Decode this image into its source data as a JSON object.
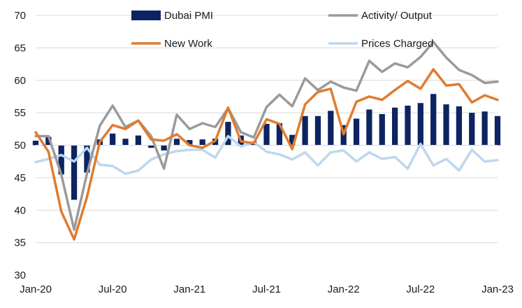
{
  "chart_data": {
    "type": "bar+line",
    "title": "",
    "xlabel": "",
    "ylabel": "",
    "ylim": [
      30,
      70
    ],
    "yticks": [
      30,
      35,
      40,
      45,
      50,
      55,
      60,
      65,
      70
    ],
    "grid": true,
    "legend_position": "top",
    "x": [
      "Jan-20",
      "Feb-20",
      "Mar-20",
      "Apr-20",
      "May-20",
      "Jun-20",
      "Jul-20",
      "Aug-20",
      "Sep-20",
      "Oct-20",
      "Nov-20",
      "Dec-20",
      "Jan-21",
      "Feb-21",
      "Mar-21",
      "Apr-21",
      "May-21",
      "Jun-21",
      "Jul-21",
      "Aug-21",
      "Sep-21",
      "Oct-21",
      "Nov-21",
      "Dec-21",
      "Jan-22",
      "Feb-22",
      "Mar-22",
      "Apr-22",
      "May-22",
      "Jun-22",
      "Jul-22",
      "Aug-22",
      "Sep-22",
      "Oct-22",
      "Nov-22",
      "Dec-22",
      "Jan-23"
    ],
    "x_tick_labels": [
      "Jan-20",
      "Jul-20",
      "Jan-21",
      "Jul-21",
      "Jan-22",
      "Jul-22",
      "Jan-23"
    ],
    "baseline": 50,
    "series": [
      {
        "name": "Dubai PMI",
        "kind": "bar",
        "color": "#0c2461",
        "values": [
          50.7,
          51.3,
          45.5,
          41.6,
          45.8,
          50.9,
          51.8,
          51.0,
          51.5,
          49.6,
          49.2,
          51.0,
          50.8,
          50.9,
          51.0,
          53.6,
          51.5,
          50.6,
          53.3,
          53.4,
          51.6,
          54.5,
          54.5,
          55.3,
          53.1,
          54.1,
          55.5,
          54.8,
          55.8,
          56.1,
          56.5,
          57.9,
          56.3,
          56.0,
          55.0,
          55.2,
          54.5
        ]
      },
      {
        "name": "Activity/ Output",
        "kind": "line",
        "color": "#9a9a9a",
        "values": [
          51.4,
          51.4,
          45.5,
          37.0,
          45.6,
          53.0,
          56.1,
          52.8,
          53.8,
          51.4,
          46.4,
          54.7,
          52.5,
          53.4,
          52.8,
          55.7,
          52.0,
          51.2,
          55.9,
          57.8,
          56.0,
          60.3,
          58.5,
          59.8,
          58.9,
          58.4,
          63.0,
          61.3,
          62.6,
          62.0,
          63.6,
          65.9,
          63.5,
          61.6,
          60.8,
          59.6,
          59.8
        ]
      },
      {
        "name": "New Work",
        "kind": "line",
        "color": "#e07b2e",
        "values": [
          52.0,
          49.0,
          39.8,
          35.5,
          42.0,
          50.5,
          53.1,
          52.5,
          53.8,
          50.9,
          50.7,
          51.7,
          50.0,
          49.6,
          50.7,
          55.8,
          50.6,
          50.3,
          54.0,
          53.3,
          49.4,
          56.3,
          58.2,
          58.7,
          51.7,
          56.7,
          57.5,
          57.0,
          58.5,
          59.9,
          58.7,
          61.7,
          59.2,
          59.4,
          56.6,
          57.7,
          57.0
        ]
      },
      {
        "name": "Prices Charged",
        "kind": "line",
        "color": "#bdd7ee",
        "values": [
          47.4,
          47.9,
          48.5,
          47.5,
          49.6,
          47.0,
          46.8,
          45.6,
          46.1,
          47.8,
          48.6,
          49.1,
          49.3,
          49.3,
          48.1,
          51.4,
          49.8,
          50.5,
          49.0,
          48.6,
          47.8,
          48.9,
          46.9,
          48.9,
          49.2,
          47.5,
          48.9,
          47.9,
          48.2,
          46.4,
          50.2,
          46.9,
          47.9,
          46.1,
          49.3,
          47.5,
          47.7
        ]
      }
    ]
  }
}
